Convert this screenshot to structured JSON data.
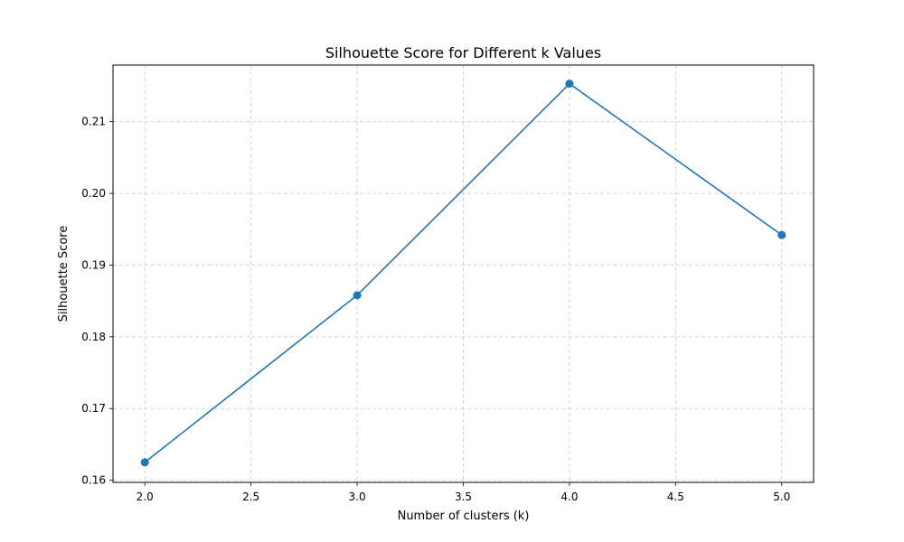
{
  "chart_data": {
    "type": "line",
    "title": "Silhouette Score for Different k Values",
    "xlabel": "Number of clusters (k)",
    "ylabel": "Silhouette Score",
    "xlim": [
      1.85,
      5.15
    ],
    "ylim": [
      0.1597,
      0.2179
    ],
    "x_ticks": [
      2.0,
      2.5,
      3.0,
      3.5,
      4.0,
      4.5,
      5.0
    ],
    "x_tick_labels": [
      "2.0",
      "2.5",
      "3.0",
      "3.5",
      "4.0",
      "4.5",
      "5.0"
    ],
    "y_ticks": [
      0.16,
      0.17,
      0.18,
      0.19,
      0.2,
      0.21
    ],
    "y_tick_labels": [
      "0.16",
      "0.17",
      "0.18",
      "0.19",
      "0.20",
      "0.21"
    ],
    "grid": true,
    "grid_style": "dashed",
    "legend": false,
    "series": [
      {
        "color": "#1f77b4",
        "marker": "circle",
        "x": [
          2,
          3,
          4,
          5
        ],
        "y": [
          0.1625,
          0.1858,
          0.2153,
          0.1942
        ]
      }
    ]
  }
}
